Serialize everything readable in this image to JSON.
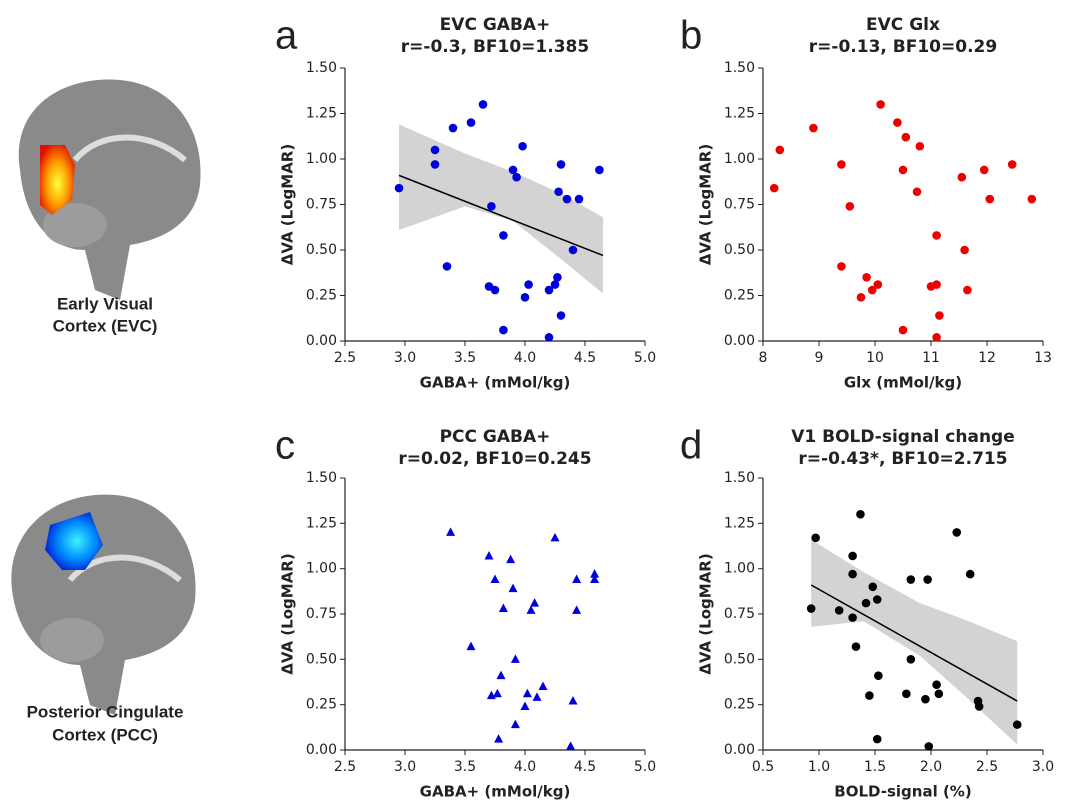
{
  "regions": [
    {
      "lines": [
        "Early Visual",
        "Cortex (EVC)"
      ]
    },
    {
      "lines": [
        "Posterior Cingulate",
        "Cortex (PCC)"
      ]
    }
  ],
  "chart_data": [
    {
      "type": "scatter",
      "panel": "a",
      "title": "EVC GABA+",
      "subtitle": "r=-0.3, BF10=1.385",
      "xlabel": "GABA+ (mMol/kg)",
      "ylabel": "ΔVA (LogMAR)",
      "xlim": [
        2.5,
        5.0
      ],
      "xticks": [
        2.5,
        {
          "value": 3,
          "label": "3.0"
        },
        3.5,
        {
          "value": 4,
          "label": "4.0"
        },
        4.5,
        {
          "value": 5,
          "label": "5.0"
        }
      ],
      "ylim": [
        0,
        1.5
      ],
      "yticks": [
        {
          "value": 0,
          "label": "0.00"
        },
        {
          "value": 0.25,
          "label": "0.25"
        },
        {
          "value": 0.5,
          "label": "0.50"
        },
        {
          "value": 0.75,
          "label": "0.75"
        },
        {
          "value": 1,
          "label": "1.00"
        },
        {
          "value": 1.25,
          "label": "1.25"
        },
        {
          "value": 1.5,
          "label": "1.50"
        }
      ],
      "series": [
        {
          "color": "#0000dd",
          "marker": "circle",
          "x": [
            2.95,
            3.25,
            3.25,
            3.35,
            3.4,
            3.55,
            3.65,
            3.7,
            3.72,
            3.75,
            3.82,
            3.82,
            3.9,
            3.93,
            3.98,
            4.0,
            4.03,
            4.2,
            4.2,
            4.25,
            4.27,
            4.28,
            4.3,
            4.3,
            4.35,
            4.4,
            4.45,
            4.62
          ],
          "values": [
            0.84,
            1.05,
            0.97,
            0.41,
            1.17,
            1.2,
            1.3,
            0.3,
            0.74,
            0.28,
            0.58,
            0.06,
            0.94,
            0.9,
            1.07,
            0.24,
            0.31,
            0.02,
            0.28,
            0.31,
            0.35,
            0.82,
            0.97,
            0.14,
            0.78,
            0.5,
            0.78,
            0.94
          ]
        }
      ],
      "fit": {
        "color": "#000000",
        "x": [
          2.95,
          4.65
        ],
        "y": [
          0.91,
          0.47
        ]
      },
      "ci": {
        "color": "#d3d3d3",
        "x": [
          2.95,
          3.5,
          3.9,
          4.3,
          4.65
        ],
        "lower": [
          0.61,
          0.74,
          0.66,
          0.45,
          0.26
        ],
        "upper": [
          1.19,
          1.03,
          0.93,
          0.81,
          0.68
        ]
      }
    },
    {
      "type": "scatter",
      "panel": "b",
      "title": "EVC Glx",
      "subtitle": "r=-0.13, BF10=0.29",
      "xlabel": "Glx (mMol/kg)",
      "ylabel": "ΔVA (LogMAR)",
      "xlim": [
        8,
        13
      ],
      "xticks": [
        8,
        9,
        10,
        11,
        12,
        13
      ],
      "ylim": [
        0,
        1.5
      ],
      "yticks": [
        {
          "value": 0,
          "label": "0.00"
        },
        {
          "value": 0.25,
          "label": "0.25"
        },
        {
          "value": 0.5,
          "label": "0.50"
        },
        {
          "value": 0.75,
          "label": "0.75"
        },
        {
          "value": 1,
          "label": "1.00"
        },
        {
          "value": 1.25,
          "label": "1.25"
        },
        {
          "value": 1.5,
          "label": "1.50"
        }
      ],
      "series": [
        {
          "color": "#ee0000",
          "marker": "circle",
          "x": [
            8.2,
            8.3,
            8.9,
            9.4,
            9.4,
            9.55,
            9.75,
            9.85,
            9.95,
            10.05,
            10.1,
            10.4,
            10.5,
            10.5,
            10.55,
            10.75,
            10.8,
            11.0,
            11.1,
            11.1,
            11.1,
            11.15,
            11.55,
            11.6,
            11.65,
            11.95,
            12.05,
            12.45,
            12.8
          ],
          "values": [
            0.84,
            1.05,
            1.17,
            0.41,
            0.97,
            0.74,
            0.24,
            0.35,
            0.28,
            0.31,
            1.3,
            1.2,
            0.94,
            0.06,
            1.12,
            0.82,
            1.07,
            0.3,
            0.58,
            0.31,
            0.02,
            0.14,
            0.9,
            0.5,
            0.28,
            0.94,
            0.78,
            0.97,
            0.78
          ]
        }
      ]
    },
    {
      "type": "scatter",
      "panel": "c",
      "title": "PCC GABA+",
      "subtitle": "r=0.02, BF10=0.245",
      "xlabel": "GABA+ (mMol/kg)",
      "ylabel": "ΔVA (LogMAR)",
      "xlim": [
        2.5,
        5.0
      ],
      "xticks": [
        2.5,
        {
          "value": 3,
          "label": "3.0"
        },
        3.5,
        {
          "value": 4,
          "label": "4.0"
        },
        4.5,
        {
          "value": 5,
          "label": "5.0"
        }
      ],
      "ylim": [
        0,
        1.5
      ],
      "yticks": [
        {
          "value": 0,
          "label": "0.00"
        },
        {
          "value": 0.25,
          "label": "0.25"
        },
        {
          "value": 0.5,
          "label": "0.50"
        },
        {
          "value": 0.75,
          "label": "0.75"
        },
        {
          "value": 1,
          "label": "1.00"
        },
        {
          "value": 1.25,
          "label": "1.25"
        },
        {
          "value": 1.5,
          "label": "1.50"
        }
      ],
      "series": [
        {
          "color": "#0000dd",
          "marker": "triangle",
          "x": [
            3.38,
            3.55,
            3.7,
            3.72,
            3.75,
            3.77,
            3.78,
            3.8,
            3.82,
            3.88,
            3.9,
            3.92,
            3.92,
            4.0,
            4.02,
            4.05,
            4.08,
            4.1,
            4.15,
            4.25,
            4.38,
            4.4,
            4.43,
            4.43,
            4.58,
            4.58
          ],
          "values": [
            1.2,
            0.57,
            1.07,
            0.3,
            0.94,
            0.31,
            0.06,
            0.41,
            0.78,
            1.05,
            0.89,
            0.14,
            0.5,
            0.24,
            0.31,
            0.77,
            0.81,
            0.29,
            0.35,
            1.17,
            0.02,
            0.27,
            0.94,
            0.77,
            0.97,
            0.94
          ]
        }
      ]
    },
    {
      "type": "scatter",
      "panel": "d",
      "title": "V1 BOLD-signal change",
      "subtitle": "r=-0.43*, BF10=2.715",
      "xlabel": "BOLD-signal (%)",
      "ylabel": "ΔVA (LogMAR)",
      "xlim": [
        0.5,
        3.0
      ],
      "xticks": [
        0.5,
        {
          "value": 1,
          "label": "1.0"
        },
        1.5,
        {
          "value": 2,
          "label": "2.0"
        },
        2.5,
        {
          "value": 3,
          "label": "3.0"
        }
      ],
      "ylim": [
        0,
        1.5
      ],
      "yticks": [
        {
          "value": 0,
          "label": "0.00"
        },
        {
          "value": 0.25,
          "label": "0.25"
        },
        {
          "value": 0.5,
          "label": "0.50"
        },
        {
          "value": 0.75,
          "label": "0.75"
        },
        {
          "value": 1,
          "label": "1.00"
        },
        {
          "value": 1.25,
          "label": "1.25"
        },
        {
          "value": 1.5,
          "label": "1.50"
        }
      ],
      "series": [
        {
          "color": "#000000",
          "marker": "circle",
          "x": [
            0.93,
            0.97,
            1.18,
            1.3,
            1.3,
            1.3,
            1.33,
            1.37,
            1.42,
            1.45,
            1.48,
            1.52,
            1.53,
            1.52,
            1.78,
            1.82,
            1.82,
            1.95,
            1.97,
            1.98,
            2.05,
            2.07,
            2.23,
            2.35,
            2.42,
            2.43,
            2.77
          ],
          "values": [
            0.78,
            1.17,
            0.77,
            0.73,
            0.97,
            1.07,
            0.57,
            1.3,
            0.81,
            0.3,
            0.9,
            0.83,
            0.41,
            0.06,
            0.31,
            0.94,
            0.5,
            0.28,
            0.94,
            0.02,
            0.36,
            0.31,
            1.2,
            0.97,
            0.27,
            0.24,
            0.14
          ]
        }
      ],
      "fit": {
        "color": "#000000",
        "x": [
          0.93,
          2.77
        ],
        "y": [
          0.91,
          0.27
        ]
      },
      "ci": {
        "color": "#d3d3d3",
        "x": [
          0.93,
          1.4,
          1.9,
          2.3,
          2.77
        ],
        "lower": [
          0.68,
          0.71,
          0.52,
          0.3,
          0.03
        ],
        "upper": [
          1.16,
          0.98,
          0.81,
          0.72,
          0.6
        ]
      }
    }
  ]
}
